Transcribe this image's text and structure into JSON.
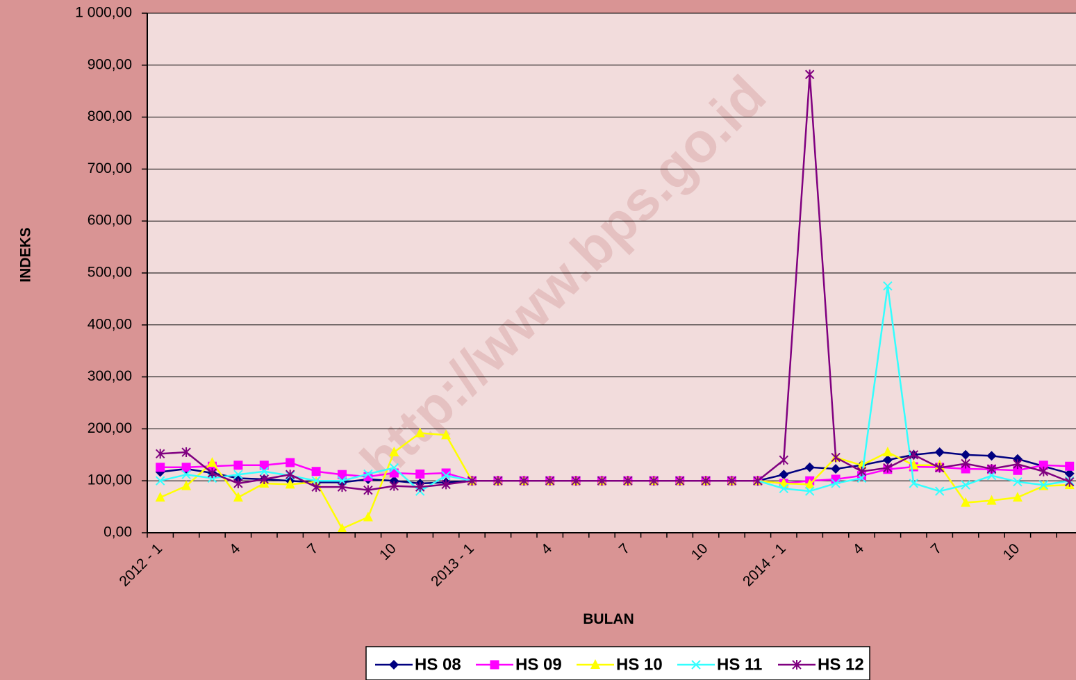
{
  "chart_data": {
    "type": "line",
    "x_label": "BULAN",
    "y_label": "INDEKS",
    "watermark": "http://www.bps.go.id",
    "categories": [
      "2012 - 1",
      null,
      null,
      "4",
      null,
      null,
      "7",
      null,
      null,
      "10",
      null,
      null,
      "2013 - 1",
      null,
      null,
      "4",
      null,
      null,
      "7",
      null,
      null,
      "10",
      null,
      null,
      "2014 - 1",
      null,
      null,
      "4",
      null,
      null,
      "7",
      null,
      null,
      "10",
      null,
      null
    ],
    "ylim": [
      0,
      1000
    ],
    "yticks": [
      {
        "value": 0,
        "label": "0,00"
      },
      {
        "value": 100,
        "label": "100,00"
      },
      {
        "value": 200,
        "label": "200,00"
      },
      {
        "value": 300,
        "label": "300,00"
      },
      {
        "value": 400,
        "label": "400,00"
      },
      {
        "value": 500,
        "label": "500,00"
      },
      {
        "value": 600,
        "label": "600,00"
      },
      {
        "value": 700,
        "label": "700,00"
      },
      {
        "value": 800,
        "label": "800,00"
      },
      {
        "value": 900,
        "label": "900,00"
      },
      {
        "value": 1000,
        "label": "1 000,00"
      }
    ],
    "grid": true,
    "legend": "bottom",
    "series": [
      {
        "name": "HS 08",
        "color": "#000080",
        "marker": "diamond",
        "values": [
          117,
          123,
          115,
          105,
          103,
          100,
          97,
          97,
          103,
          100,
          95,
          97,
          100,
          100,
          100,
          100,
          100,
          100,
          100,
          100,
          100,
          100,
          100,
          100,
          112,
          126,
          123,
          130,
          140,
          150,
          155,
          150,
          148,
          142,
          128,
          114
        ]
      },
      {
        "name": "HS 09",
        "color": "#ff00ff",
        "marker": "square",
        "values": [
          126,
          126,
          128,
          130,
          130,
          135,
          118,
          112,
          108,
          115,
          113,
          115,
          100,
          100,
          100,
          100,
          100,
          100,
          100,
          100,
          100,
          100,
          100,
          100,
          95,
          100,
          103,
          110,
          122,
          127,
          126,
          123,
          122,
          120,
          130,
          128
        ]
      },
      {
        "name": "HS 10",
        "color": "#ffff00",
        "marker": "triangle",
        "values": [
          68,
          90,
          135,
          68,
          95,
          93,
          98,
          8,
          30,
          155,
          192,
          188,
          100,
          100,
          100,
          100,
          100,
          100,
          100,
          100,
          100,
          100,
          100,
          100,
          95,
          93,
          145,
          130,
          155,
          130,
          130,
          58,
          62,
          68,
          90,
          92
        ]
      },
      {
        "name": "HS 11",
        "color": "#33ffff",
        "marker": "x",
        "values": [
          100,
          112,
          105,
          112,
          118,
          110,
          100,
          100,
          113,
          125,
          80,
          110,
          100,
          100,
          100,
          100,
          100,
          100,
          100,
          100,
          100,
          100,
          100,
          100,
          85,
          80,
          95,
          105,
          475,
          95,
          80,
          92,
          110,
          98,
          92,
          100
        ]
      },
      {
        "name": "HS 12",
        "color": "#800080",
        "marker": "star",
        "values": [
          152,
          155,
          115,
          95,
          103,
          112,
          88,
          88,
          82,
          90,
          88,
          93,
          100,
          100,
          100,
          100,
          100,
          100,
          100,
          100,
          100,
          100,
          100,
          100,
          140,
          882,
          145,
          118,
          125,
          150,
          125,
          133,
          123,
          132,
          118,
          98
        ]
      }
    ]
  }
}
